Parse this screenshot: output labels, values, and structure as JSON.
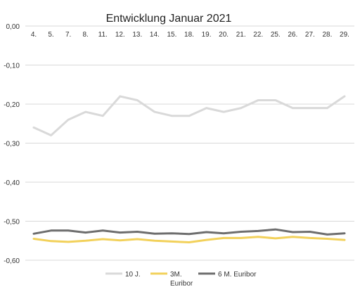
{
  "chart_data": {
    "type": "line",
    "title": "Entwicklung Januar 2021",
    "categories": [
      "4.",
      "5.",
      "7.",
      "8.",
      "11.",
      "12.",
      "13.",
      "14.",
      "15.",
      "18.",
      "19.",
      "20.",
      "21.",
      "22.",
      "25.",
      "26.",
      "27.",
      "28.",
      "29."
    ],
    "ylim": [
      -0.6,
      0.0
    ],
    "yticks": [
      "0,00",
      "-0,10",
      "-0,20",
      "-0,30",
      "-0,40",
      "-0,50",
      "-0,60"
    ],
    "ytick_values": [
      0.0,
      -0.1,
      -0.2,
      -0.3,
      -0.4,
      -0.5,
      -0.6
    ],
    "grid": true,
    "legend_position": "bottom",
    "series": [
      {
        "name": "10 J.",
        "color": "#d9d9d9",
        "values": [
          -0.26,
          -0.28,
          -0.24,
          -0.22,
          -0.23,
          -0.18,
          -0.19,
          -0.22,
          -0.23,
          -0.23,
          -0.21,
          -0.22,
          -0.21,
          -0.19,
          -0.19,
          -0.21,
          -0.21,
          -0.21,
          -0.18
        ]
      },
      {
        "name": "3M. Euribor",
        "legend_lines": [
          "3M.",
          "Euribor"
        ],
        "color": "#f2d15b",
        "values": [
          -0.545,
          -0.551,
          -0.553,
          -0.55,
          -0.546,
          -0.549,
          -0.546,
          -0.55,
          -0.552,
          -0.554,
          -0.548,
          -0.543,
          -0.543,
          -0.54,
          -0.544,
          -0.54,
          -0.543,
          -0.545,
          -0.548
        ]
      },
      {
        "name": "6 M. Euribor",
        "color": "#6e6e6e",
        "values": [
          -0.532,
          -0.524,
          -0.524,
          -0.529,
          -0.524,
          -0.529,
          -0.527,
          -0.532,
          -0.531,
          -0.533,
          -0.528,
          -0.531,
          -0.527,
          -0.525,
          -0.521,
          -0.528,
          -0.527,
          -0.534,
          -0.531
        ]
      }
    ]
  }
}
